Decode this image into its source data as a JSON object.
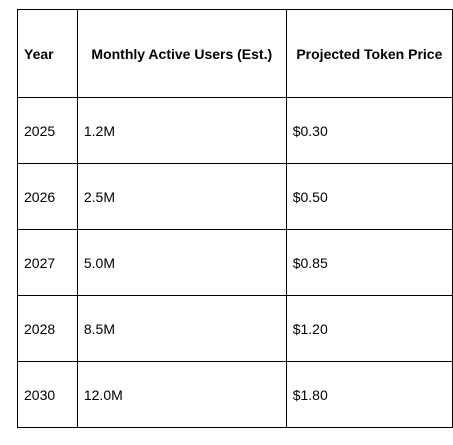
{
  "table": {
    "headers": [
      "Year",
      "Monthly Active Users (Est.)",
      "Projected Token Price"
    ],
    "rows": [
      [
        "2025",
        "1.2M",
        "$0.30"
      ],
      [
        "2026",
        "2.5M",
        "$0.50"
      ],
      [
        "2027",
        "5.0M",
        "$0.85"
      ],
      [
        "2028",
        "8.5M",
        "$1.20"
      ],
      [
        "2030",
        "12.0M",
        "$1.80"
      ]
    ]
  }
}
